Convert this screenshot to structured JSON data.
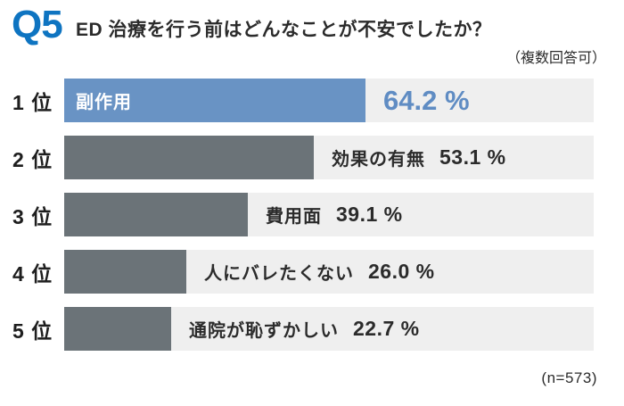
{
  "header": {
    "q_label": "Q5",
    "title": "ED 治療を行う前はどんなことが不安でしたか？",
    "note": "（複数回答可）"
  },
  "footer": {
    "sample": "(n=573)"
  },
  "colors": {
    "accent_blue": "#0e74c1",
    "bar_blue": "#6993c4",
    "bar_gray": "#6b7378",
    "track_gray": "#efefef",
    "text_dark": "#2b2b2b",
    "value_blue": "#5f8cc3"
  },
  "chart_data": {
    "type": "bar",
    "orientation": "horizontal",
    "title": "ED 治療を行う前はどんなことが不安でしたか？",
    "note": "（複数回答可）",
    "sample_size": 573,
    "unit": "%",
    "xlim": [
      0,
      112.7
    ],
    "grid": false,
    "legend": "none",
    "ranks": [
      "1 位",
      "2 位",
      "3 位",
      "4 位",
      "5 位"
    ],
    "categories": [
      "副作用",
      "効果の有無",
      "費用面",
      "人にバレたくない",
      "通院が恥ずかしい"
    ],
    "values": [
      64.2,
      53.1,
      39.1,
      26.0,
      22.7
    ],
    "value_labels": [
      "64.2 %",
      "53.1 %",
      "39.1 %",
      "26.0 %",
      "22.7 %"
    ],
    "highlight_index": 0
  }
}
